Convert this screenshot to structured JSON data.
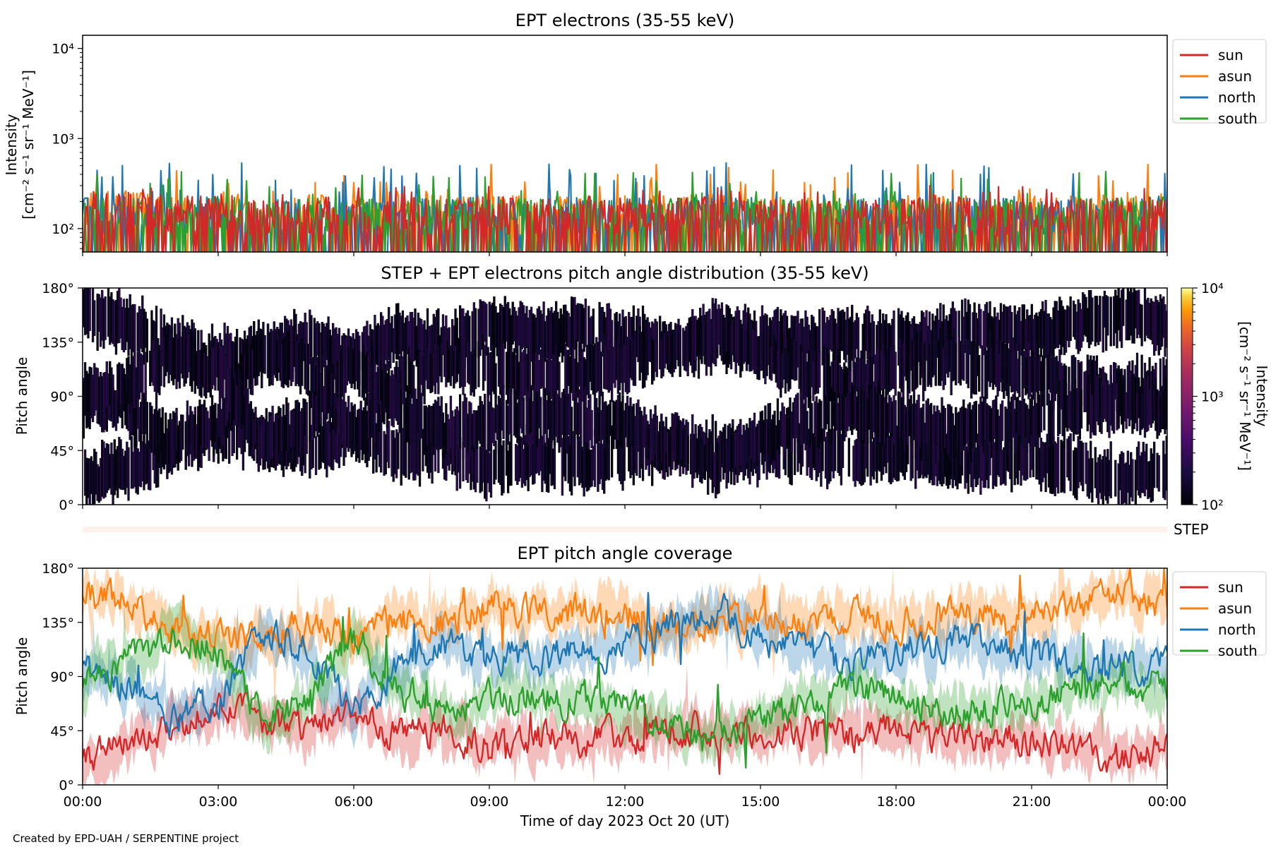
{
  "footer": "Created by EPD-UAH / SERPENTINE project",
  "colors": {
    "sun": "#d62728",
    "asun": "#ff7f0e",
    "north": "#1f77b4",
    "south": "#2ca02c"
  },
  "chart_data": [
    {
      "type": "line",
      "title": "EPT electrons (35-55 keV)",
      "ylabel": "Intensity",
      "ylabel_units": "[cm⁻² s⁻¹ sr⁻¹ MeV⁻¹]",
      "yscale": "log",
      "ylim": [
        55,
        14000
      ],
      "y_ticks": [
        "10²",
        "10³",
        "10⁴"
      ],
      "xlim_hours": [
        0,
        24
      ],
      "legend_position": "outside-right",
      "series": [
        {
          "name": "sun",
          "color": "#d62728",
          "typical": 150,
          "peak": 300,
          "values": [
            160,
            180,
            150,
            170,
            140,
            160,
            150,
            155,
            150,
            160,
            150,
            145,
            155,
            150,
            160,
            150,
            145,
            155,
            150,
            160,
            150,
            150,
            155,
            150,
            160
          ]
        },
        {
          "name": "asun",
          "color": "#ff7f0e",
          "typical": 160,
          "peak": 520,
          "values": [
            170,
            190,
            160,
            180,
            150,
            170,
            160,
            165,
            160,
            170,
            160,
            155,
            165,
            160,
            170,
            160,
            160,
            165,
            160,
            170,
            160,
            160,
            165,
            160,
            170
          ]
        },
        {
          "name": "north",
          "color": "#1f77b4",
          "typical": 150,
          "peak": 540,
          "values": [
            150,
            170,
            145,
            165,
            140,
            155,
            150,
            150,
            150,
            160,
            150,
            145,
            150,
            150,
            160,
            150,
            145,
            155,
            150,
            160,
            150,
            150,
            150,
            150,
            160
          ]
        },
        {
          "name": "south",
          "color": "#2ca02c",
          "typical": 150,
          "peak": 430,
          "values": [
            150,
            165,
            145,
            160,
            140,
            155,
            150,
            150,
            150,
            155,
            150,
            145,
            150,
            150,
            155,
            150,
            145,
            150,
            150,
            155,
            150,
            150,
            150,
            150,
            155
          ]
        }
      ]
    },
    {
      "type": "heatmap",
      "title": "STEP + EPT electrons pitch angle distribution (35-55 keV)",
      "ylabel": "Pitch angle",
      "y_ticks": [
        "0°",
        "45°",
        "90°",
        "135°",
        "180°"
      ],
      "ylim": [
        0,
        180
      ],
      "colorbar": {
        "label": "Intensity",
        "units": "[cm⁻² s⁻¹ sr⁻¹ MeV⁻¹]",
        "ticks": [
          "10²",
          "10³",
          "10⁴"
        ],
        "range": [
          100,
          10000
        ],
        "scale": "log",
        "colormap": "inferno"
      },
      "xlim_hours": [
        0,
        24
      ]
    },
    {
      "type": "heatmap",
      "label": "STEP"
    },
    {
      "type": "line",
      "title": "EPT pitch angle coverage",
      "ylabel": "Pitch angle",
      "xlabel": "Time of day 2023 Oct 20 (UT)",
      "x_ticks": [
        "00:00",
        "03:00",
        "06:00",
        "09:00",
        "12:00",
        "15:00",
        "18:00",
        "21:00",
        "00:00"
      ],
      "y_ticks": [
        "0°",
        "45°",
        "90°",
        "135°",
        "180°"
      ],
      "ylim": [
        0,
        180
      ],
      "xlim_hours": [
        0,
        24
      ],
      "legend_position": "outside-right",
      "x_hours": [
        0,
        1,
        2,
        3,
        4,
        5,
        6,
        7,
        8,
        9,
        10,
        11,
        12,
        13,
        14,
        15,
        16,
        17,
        18,
        19,
        20,
        21,
        22,
        23,
        24
      ],
      "series": [
        {
          "name": "sun",
          "color": "#d62728",
          "values": [
            20,
            30,
            50,
            60,
            55,
            45,
            60,
            40,
            45,
            30,
            40,
            35,
            40,
            50,
            45,
            40,
            45,
            40,
            45,
            40,
            35,
            40,
            30,
            20,
            30
          ]
        },
        {
          "name": "asun",
          "color": "#ff7f0e",
          "values": [
            160,
            150,
            130,
            120,
            125,
            135,
            120,
            140,
            135,
            150,
            140,
            145,
            140,
            130,
            135,
            140,
            135,
            140,
            135,
            140,
            145,
            140,
            150,
            160,
            150
          ]
        },
        {
          "name": "north",
          "color": "#1f77b4",
          "values": [
            95,
            80,
            55,
            70,
            130,
            110,
            60,
            100,
            120,
            110,
            105,
            110,
            115,
            130,
            145,
            125,
            110,
            100,
            110,
            120,
            115,
            110,
            100,
            95,
            100
          ]
        },
        {
          "name": "south",
          "color": "#2ca02c",
          "values": [
            85,
            100,
            125,
            110,
            50,
            70,
            120,
            80,
            60,
            70,
            75,
            70,
            65,
            50,
            35,
            55,
            70,
            80,
            70,
            60,
            65,
            70,
            80,
            85,
            80
          ]
        }
      ]
    }
  ]
}
